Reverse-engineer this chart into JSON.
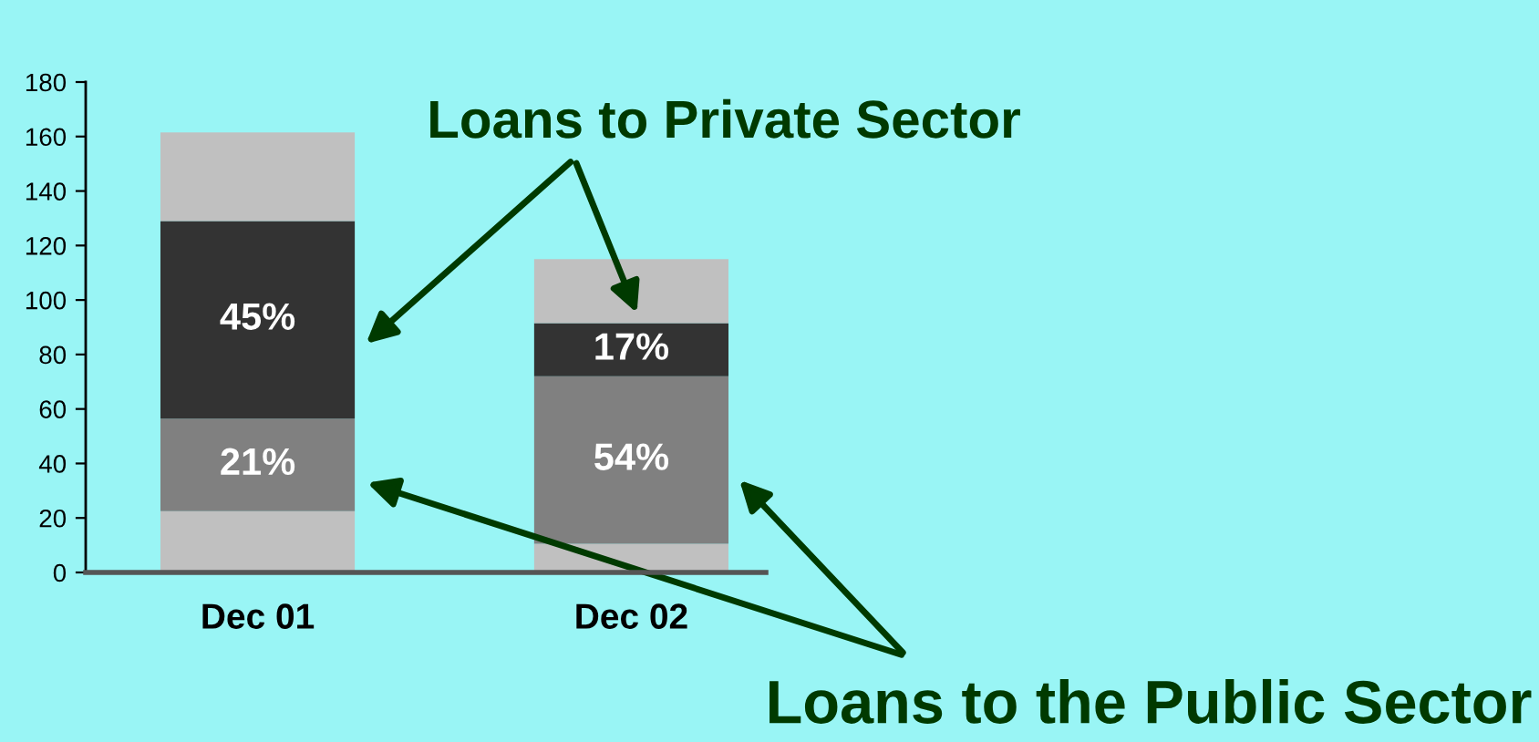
{
  "chart_data": {
    "type": "bar",
    "stacked": true,
    "categories": [
      "Dec 01",
      "Dec 02"
    ],
    "series": [
      {
        "color": "#c0c0c0",
        "values": [
          22.5,
          10.5
        ]
      },
      {
        "color": "#808080",
        "values": [
          34,
          61.5
        ]
      },
      {
        "color": "#333333",
        "values": [
          72.5,
          19.5
        ]
      },
      {
        "color": "#c0c0c0",
        "values": [
          32.5,
          23.5
        ]
      }
    ],
    "ylim": [
      0,
      180
    ],
    "yticks": [
      0,
      20,
      40,
      60,
      80,
      100,
      120,
      140,
      160,
      180
    ],
    "grid": false,
    "legend": false,
    "annotations": [
      "Loans to Private Sector",
      "Loans to the Public Sector",
      "21%",
      "54%",
      "45%",
      "17%"
    ]
  }
}
